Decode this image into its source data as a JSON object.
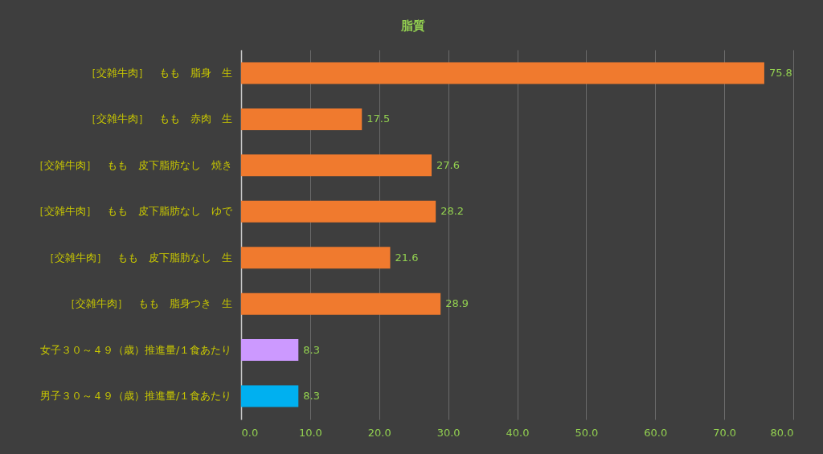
{
  "chart_data": {
    "type": "bar",
    "orientation": "horizontal",
    "title": "脂質",
    "categories": [
      "［交雑牛肉］　もも　脂身　生",
      "［交雑牛肉］　もも　赤肉　生",
      "［交雑牛肉］　もも　皮下脂肪なし　焼き",
      "［交雑牛肉］　もも　皮下脂肪なし　ゆで",
      "［交雑牛肉］　もも　皮下脂肪なし　生",
      "［交雑牛肉］　もも　脂身つき　生",
      "女子３０～４９（歳）推進量/１食あたり",
      "男子３０～４９（歳）推進量/１食あたり"
    ],
    "values": [
      75.8,
      17.5,
      27.6,
      28.2,
      21.6,
      28.9,
      8.3,
      8.3
    ],
    "colors": [
      "#f07a2e",
      "#f07a2e",
      "#f07a2e",
      "#f07a2e",
      "#f07a2e",
      "#f07a2e",
      "#cc99ff",
      "#00b0f0"
    ],
    "xlim": [
      0,
      80
    ],
    "xticks": [
      {
        "value": 0,
        "label": "0.0"
      },
      {
        "value": 10,
        "label": "10.0"
      },
      {
        "value": 20,
        "label": "20.0"
      },
      {
        "value": 30,
        "label": "30.0"
      },
      {
        "value": 40,
        "label": "40.0"
      },
      {
        "value": 50,
        "label": "50.0"
      },
      {
        "value": 60,
        "label": "60.0"
      },
      {
        "value": 70,
        "label": "70.0"
      },
      {
        "value": 80,
        "label": "80.0"
      }
    ],
    "grid": "x",
    "data_labels": true
  }
}
